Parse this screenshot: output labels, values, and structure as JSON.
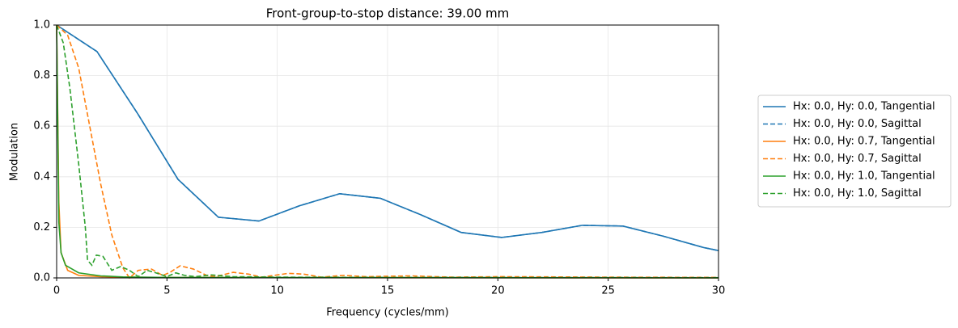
{
  "chart_data": {
    "type": "line",
    "title": "Front-group-to-stop distance: 39.00 mm",
    "x_label": "Frequency (cycles/mm)",
    "y_label": "Modulation",
    "xlim": [
      0,
      30
    ],
    "ylim": [
      0,
      1
    ],
    "xticks": [
      0,
      5,
      10,
      15,
      20,
      25,
      30
    ],
    "yticks": [
      {
        "value": 0,
        "label": "0.0"
      },
      {
        "value": 0.2,
        "label": "0.2"
      },
      {
        "value": 0.4,
        "label": "0.4"
      },
      {
        "value": 0.6,
        "label": "0.6"
      },
      {
        "value": 0.8,
        "label": "0.8"
      },
      {
        "value": 1,
        "label": "1.0"
      }
    ],
    "grid": true,
    "legend": "outside-right",
    "series": [
      {
        "name": "Hx: 0.0, Hy: 0.0, Tangential",
        "color": "#1f77b4",
        "dashed": false,
        "x": [
          0,
          1.83,
          3.67,
          5.5,
          7.33,
          9.17,
          11,
          12.83,
          14.67,
          16.5,
          18.33,
          20.17,
          22,
          23.83,
          25.67,
          27.5,
          29.33,
          30
        ],
        "values": [
          1.0,
          0.895,
          0.65,
          0.39,
          0.24,
          0.225,
          0.285,
          0.333,
          0.315,
          0.25,
          0.18,
          0.16,
          0.18,
          0.208,
          0.205,
          0.165,
          0.12,
          0.108
        ]
      },
      {
        "name": "Hx: 0.0, Hy: 0.0, Sagittal",
        "color": "#1f77b4",
        "dashed": true,
        "x": [
          0,
          1.83,
          3.67,
          5.5,
          7.33,
          9.17,
          11,
          12.83,
          14.67,
          16.5,
          18.33,
          20.17,
          22,
          23.83,
          25.67,
          27.5,
          29.33,
          30
        ],
        "values": [
          1.0,
          0.895,
          0.65,
          0.39,
          0.24,
          0.225,
          0.285,
          0.333,
          0.315,
          0.25,
          0.18,
          0.16,
          0.18,
          0.208,
          0.205,
          0.165,
          0.12,
          0.108
        ]
      },
      {
        "name": "Hx: 0.0, Hy: 0.7, Tangential",
        "color": "#ff7f0e",
        "dashed": false,
        "x": [
          0,
          0.1,
          0.2,
          0.5,
          1,
          2,
          3,
          5,
          10,
          30
        ],
        "values": [
          1.0,
          0.3,
          0.1,
          0.03,
          0.01,
          0.005,
          0.003,
          0.002,
          0.001,
          0.0
        ]
      },
      {
        "name": "Hx: 0.0, Hy: 0.7, Sagittal",
        "color": "#ff7f0e",
        "dashed": true,
        "x": [
          0,
          0.5,
          1,
          1.5,
          2,
          2.5,
          3,
          3.3,
          3.7,
          4.3,
          4.8,
          5.1,
          5.6,
          6.2,
          6.8,
          7.2,
          8,
          8.7,
          9.3,
          10.5,
          11.2,
          12,
          13,
          14,
          16,
          18,
          20,
          25,
          30
        ],
        "values": [
          1.0,
          0.96,
          0.83,
          0.6,
          0.37,
          0.17,
          0.04,
          0.0,
          0.03,
          0.035,
          0.01,
          0.02,
          0.048,
          0.035,
          0.01,
          0.005,
          0.022,
          0.015,
          0.003,
          0.018,
          0.015,
          0.003,
          0.01,
          0.005,
          0.008,
          0.003,
          0.005,
          0.003,
          0.002
        ]
      },
      {
        "name": "Hx: 0.0, Hy: 1.0, Tangential",
        "color": "#2ca02c",
        "dashed": false,
        "x": [
          0,
          0.1,
          0.2,
          0.4,
          1,
          2,
          3,
          5,
          30
        ],
        "values": [
          1.0,
          0.22,
          0.1,
          0.05,
          0.02,
          0.008,
          0.004,
          0.002,
          0.0
        ]
      },
      {
        "name": "Hx: 0.0, Hy: 1.0, Sagittal",
        "color": "#2ca02c",
        "dashed": true,
        "x": [
          0,
          0.3,
          0.6,
          1.0,
          1.3,
          1.4,
          1.6,
          1.8,
          2.1,
          2.5,
          2.9,
          3.3,
          3.7,
          4.1,
          4.5,
          5,
          5.4,
          5.8,
          6.3,
          7,
          8,
          10,
          15,
          30
        ],
        "values": [
          1.0,
          0.93,
          0.75,
          0.45,
          0.2,
          0.07,
          0.05,
          0.09,
          0.085,
          0.03,
          0.045,
          0.03,
          0.005,
          0.03,
          0.02,
          0.005,
          0.02,
          0.01,
          0.005,
          0.012,
          0.005,
          0.003,
          0.002,
          0.001
        ]
      }
    ]
  }
}
